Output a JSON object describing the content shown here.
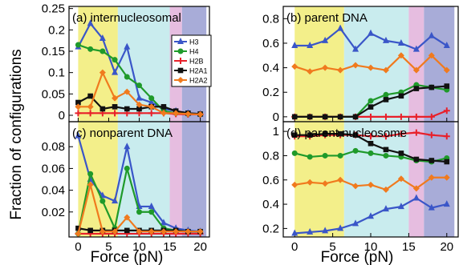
{
  "figure": {
    "ylabel": "Fraction of configurations",
    "xlabel": "Force (pN)"
  },
  "legend": [
    "H3",
    "H4",
    "H2B",
    "H2A1",
    "H2A2"
  ],
  "series_colors": {
    "H3": "#3a56c8",
    "H4": "#1f9a2a",
    "H2B": "#e8202a",
    "H2A1": "#111111",
    "H2A2": "#f07a1e"
  },
  "band_colors": [
    "#f3ef8a",
    "#c9ecee",
    "#e6bde0",
    "#a8acd8"
  ],
  "force_bands": [
    [
      0,
      6.5
    ],
    [
      6.5,
      15
    ],
    [
      15,
      17
    ],
    [
      17,
      21
    ]
  ],
  "chart_data": [
    {
      "type": "line",
      "title": "(a) internucleosomal",
      "xlabel": "Force (pN)",
      "ylabel": "Fraction of configurations",
      "xlim": [
        -1.5,
        21.5
      ],
      "ylim": [
        -0.015,
        0.255
      ],
      "xticks": [
        0,
        5,
        10,
        15,
        20
      ],
      "xtick_labels": [],
      "yticks": [
        0,
        0.05,
        0.1,
        0.15,
        0.2,
        0.25
      ],
      "ytick_labels": [
        "0",
        "0.05",
        "0.1",
        "0.15",
        "0.2",
        "0.25"
      ],
      "x": [
        0,
        2,
        4,
        6,
        8,
        10,
        12,
        14,
        16,
        18,
        20
      ],
      "series": [
        {
          "name": "H3",
          "marker": "triangle",
          "values": [
            0.16,
            0.215,
            0.18,
            0.1,
            0.16,
            0.04,
            0.03,
            0.015,
            0.01,
            0.005,
            0.003
          ]
        },
        {
          "name": "H4",
          "marker": "circle",
          "values": [
            0.165,
            0.155,
            0.15,
            0.13,
            0.09,
            0.07,
            0.04,
            0.01,
            0.005,
            0.003,
            0.002
          ]
        },
        {
          "name": "H2B",
          "marker": "plus",
          "values": [
            0.005,
            0.005,
            0.005,
            0.005,
            0.005,
            0.005,
            0.005,
            0.005,
            0.003,
            0.002,
            0.002
          ]
        },
        {
          "name": "H2A1",
          "marker": "square",
          "values": [
            0.03,
            0.045,
            0.015,
            0.02,
            0.015,
            0.015,
            0.02,
            0.02,
            0.01,
            0.005,
            0.003
          ]
        },
        {
          "name": "H2A2",
          "marker": "diamond",
          "values": [
            0.02,
            0.02,
            0.1,
            0.04,
            0.055,
            0.025,
            0.02,
            0.005,
            0.005,
            0.003,
            0.002
          ]
        }
      ]
    },
    {
      "type": "line",
      "title": "(b) parent DNA",
      "xlabel": "Force (pN)",
      "ylabel": "",
      "xlim": [
        -1.5,
        21.5
      ],
      "ylim": [
        -0.04,
        0.9
      ],
      "xticks": [
        0,
        5,
        10,
        15,
        20
      ],
      "xtick_labels": [],
      "yticks": [
        0,
        0.2,
        0.4,
        0.6,
        0.8
      ],
      "ytick_labels": [
        "0",
        "0.2",
        "0.4",
        "0.6",
        "0.8"
      ],
      "x": [
        0,
        2,
        4,
        6,
        8,
        10,
        12,
        14,
        16,
        18,
        20
      ],
      "series": [
        {
          "name": "H3",
          "marker": "triangle",
          "values": [
            0.58,
            0.58,
            0.62,
            0.72,
            0.55,
            0.68,
            0.62,
            0.6,
            0.55,
            0.66,
            0.58
          ]
        },
        {
          "name": "H4",
          "marker": "circle",
          "values": [
            0.0,
            0.0,
            0.0,
            0.0,
            0.0,
            0.13,
            0.18,
            0.2,
            0.26,
            0.24,
            0.22
          ]
        },
        {
          "name": "H2B",
          "marker": "plus",
          "values": [
            0.0,
            0.0,
            0.0,
            0.0,
            0.0,
            0.0,
            0.0,
            0.0,
            0.0,
            0.0,
            0.05
          ]
        },
        {
          "name": "H2A1",
          "marker": "square",
          "values": [
            0.0,
            0.0,
            0.0,
            0.0,
            0.0,
            0.08,
            0.14,
            0.17,
            0.23,
            0.24,
            0.25
          ]
        },
        {
          "name": "H2A2",
          "marker": "diamond",
          "values": [
            0.41,
            0.37,
            0.4,
            0.38,
            0.42,
            0.4,
            0.38,
            0.5,
            0.38,
            0.5,
            0.38
          ]
        }
      ]
    },
    {
      "type": "line",
      "title": "(c) nonparent DNA",
      "xlabel": "Force (pN)",
      "ylabel": "Fraction of configurations",
      "xlim": [
        -1.5,
        21.5
      ],
      "ylim": [
        -0.003,
        0.103
      ],
      "xticks": [
        0,
        5,
        10,
        15,
        20
      ],
      "xtick_labels": [
        "0",
        "5",
        "10",
        "15",
        "20"
      ],
      "yticks": [
        0.02,
        0.04,
        0.06,
        0.08
      ],
      "ytick_labels": [
        "0.02",
        "0.04",
        "0.06",
        "0.08"
      ],
      "x": [
        0,
        2,
        4,
        6,
        8,
        10,
        12,
        14,
        16,
        18,
        20
      ],
      "series": [
        {
          "name": "H3",
          "marker": "triangle",
          "values": [
            0.09,
            0.05,
            0.035,
            0.03,
            0.08,
            0.025,
            0.025,
            0.01,
            0.005,
            0.003,
            0.002
          ]
        },
        {
          "name": "H4",
          "marker": "circle",
          "values": [
            0.0,
            0.055,
            0.03,
            0.005,
            0.06,
            0.02,
            0.02,
            0.005,
            0.003,
            0.002,
            0.002
          ]
        },
        {
          "name": "H2B",
          "marker": "plus",
          "values": [
            0.0,
            0.0,
            0.0,
            0.0,
            0.0,
            0.0,
            0.0,
            0.0,
            0.0,
            0.0,
            0.0
          ]
        },
        {
          "name": "H2A1",
          "marker": "square",
          "values": [
            0.005,
            0.003,
            0.003,
            0.003,
            0.003,
            0.003,
            0.003,
            0.003,
            0.003,
            0.002,
            0.002
          ]
        },
        {
          "name": "H2A2",
          "marker": "diamond",
          "values": [
            0.0,
            0.045,
            0.002,
            0.002,
            0.015,
            0.002,
            0.002,
            0.002,
            0.002,
            0.002,
            0.002
          ]
        }
      ]
    },
    {
      "type": "line",
      "title": "(d) parent nucleosome",
      "xlabel": "Force (pN)",
      "ylabel": "",
      "xlim": [
        -1.5,
        21.5
      ],
      "ylim": [
        0.13,
        1.08
      ],
      "xticks": [
        0,
        5,
        10,
        15,
        20
      ],
      "xtick_labels": [
        "0",
        "5",
        "10",
        "15",
        "20"
      ],
      "yticks": [
        0.2,
        0.4,
        0.6,
        0.8,
        1.0
      ],
      "ytick_labels": [
        "0.2",
        "0.4",
        "0.6",
        "0.8",
        "1"
      ],
      "x": [
        0,
        2,
        4,
        6,
        8,
        10,
        12,
        14,
        16,
        18,
        20
      ],
      "series": [
        {
          "name": "H3",
          "marker": "triangle",
          "values": [
            0.16,
            0.17,
            0.18,
            0.2,
            0.24,
            0.3,
            0.36,
            0.38,
            0.45,
            0.37,
            0.4
          ]
        },
        {
          "name": "H4",
          "marker": "circle",
          "values": [
            0.82,
            0.79,
            0.8,
            0.8,
            0.84,
            0.82,
            0.8,
            0.79,
            0.76,
            0.75,
            0.78
          ]
        },
        {
          "name": "H2B",
          "marker": "plus",
          "values": [
            0.96,
            0.96,
            0.97,
            0.97,
            0.97,
            0.96,
            0.96,
            0.98,
            0.99,
            0.97,
            0.96
          ]
        },
        {
          "name": "H2A1",
          "marker": "square",
          "values": [
            0.97,
            0.97,
            0.98,
            0.98,
            0.97,
            0.9,
            0.85,
            0.82,
            0.77,
            0.76,
            0.75
          ]
        },
        {
          "name": "H2A2",
          "marker": "diamond",
          "values": [
            0.56,
            0.58,
            0.57,
            0.6,
            0.55,
            0.56,
            0.52,
            0.61,
            0.53,
            0.62,
            0.62
          ]
        }
      ]
    }
  ]
}
